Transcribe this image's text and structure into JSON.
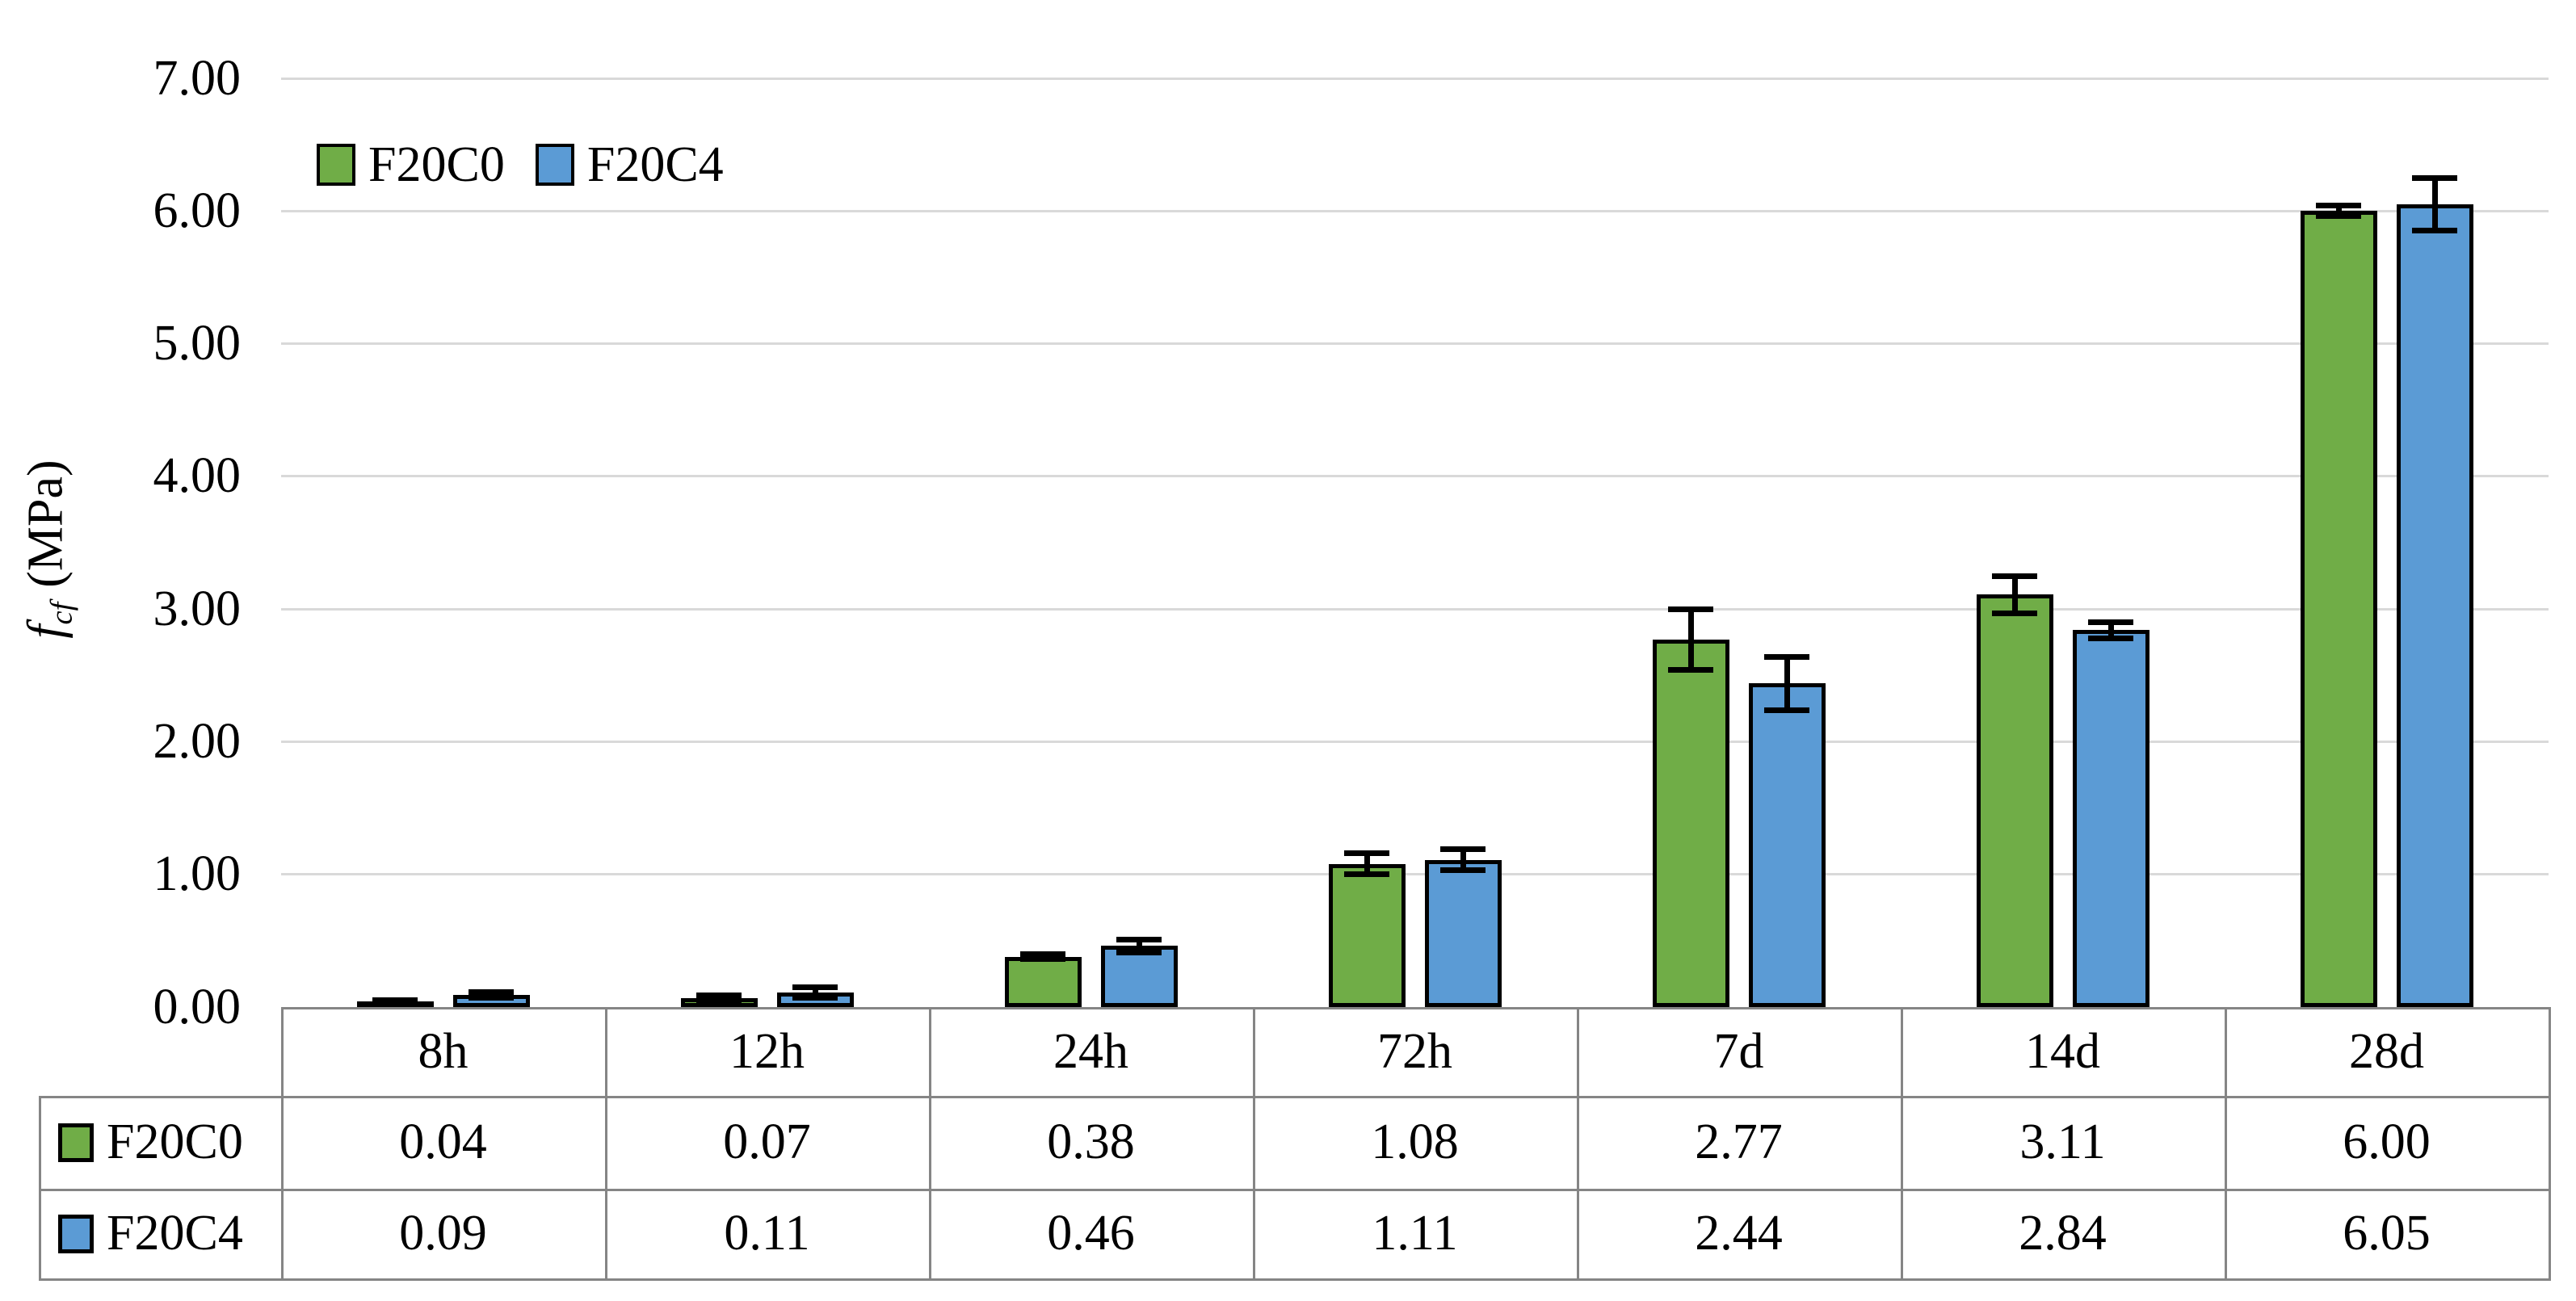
{
  "chart_data": {
    "type": "bar",
    "title": "",
    "ylabel": {
      "symbol": "f",
      "subscript": "cf",
      "unit": "(MPa)"
    },
    "ylim": [
      0,
      7
    ],
    "ytick_step": 1,
    "ytick_labels": [
      "0.00",
      "1.00",
      "2.00",
      "3.00",
      "4.00",
      "5.00",
      "6.00",
      "7.00"
    ],
    "grid": true,
    "legend_position": "top-left",
    "categories": [
      "8h",
      "12h",
      "24h",
      "72h",
      "7d",
      "14d",
      "28d"
    ],
    "series": [
      {
        "name": "F20C0",
        "color": "#70AD47",
        "values": [
          0.04,
          0.07,
          0.38,
          1.08,
          2.77,
          3.11,
          6.0
        ],
        "value_labels": [
          "0.04",
          "0.07",
          "0.38",
          "1.08",
          "2.77",
          "3.11",
          "6.00"
        ],
        "errors": [
          0.01,
          0.02,
          0.02,
          0.08,
          0.23,
          0.14,
          0.04
        ]
      },
      {
        "name": "F20C4",
        "color": "#5B9BD5",
        "values": [
          0.09,
          0.11,
          0.46,
          1.11,
          2.44,
          2.84,
          6.05
        ],
        "value_labels": [
          "0.09",
          "0.11",
          "0.46",
          "1.11",
          "2.44",
          "2.84",
          "6.05"
        ],
        "errors": [
          0.02,
          0.04,
          0.05,
          0.08,
          0.2,
          0.06,
          0.2
        ]
      }
    ],
    "colors": {
      "gridline": "#D9D9D9",
      "table_border": "#858585",
      "bar_outline": "#000000",
      "error_bar": "#000000",
      "text": "#000000",
      "background": "#FFFFFF"
    }
  }
}
